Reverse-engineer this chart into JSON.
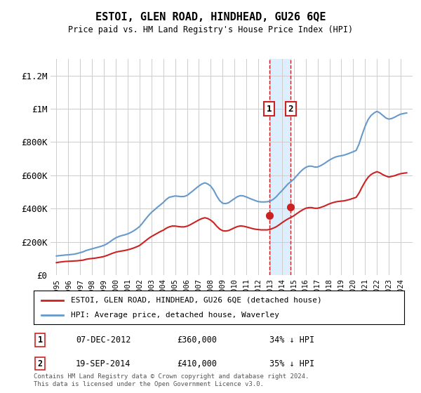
{
  "title": "ESTOI, GLEN ROAD, HINDHEAD, GU26 6QE",
  "subtitle": "Price paid vs. HM Land Registry's House Price Index (HPI)",
  "hpi_color": "#6699cc",
  "price_color": "#cc2222",
  "annotation_bg": "#ddeeff",
  "annotation_border": "#cc2222",
  "vline_color": "#cc2222",
  "grid_color": "#cccccc",
  "ylim": [
    0,
    1300000
  ],
  "yticks": [
    0,
    200000,
    400000,
    600000,
    800000,
    1000000,
    1200000
  ],
  "ytick_labels": [
    "£0",
    "£200K",
    "£400K",
    "£600K",
    "£800K",
    "£1M",
    "£1.2M"
  ],
  "sale1": {
    "date_num": 2012.92,
    "price": 360000,
    "label": "1",
    "date_str": "07-DEC-2012",
    "pct": "34% ↓ HPI"
  },
  "sale2": {
    "date_num": 2014.72,
    "price": 410000,
    "label": "2",
    "date_str": "19-SEP-2014",
    "pct": "35% ↓ HPI"
  },
  "legend_line1": "ESTOI, GLEN ROAD, HINDHEAD, GU26 6QE (detached house)",
  "legend_line2": "HPI: Average price, detached house, Waverley",
  "footnote": "Contains HM Land Registry data © Crown copyright and database right 2024.\nThis data is licensed under the Open Government Licence v3.0.",
  "hpi_x": [
    1995.0,
    1995.25,
    1995.5,
    1995.75,
    1996.0,
    1996.25,
    1996.5,
    1996.75,
    1997.0,
    1997.25,
    1997.5,
    1997.75,
    1998.0,
    1998.25,
    1998.5,
    1998.75,
    1999.0,
    1999.25,
    1999.5,
    1999.75,
    2000.0,
    2000.25,
    2000.5,
    2000.75,
    2001.0,
    2001.25,
    2001.5,
    2001.75,
    2002.0,
    2002.25,
    2002.5,
    2002.75,
    2003.0,
    2003.25,
    2003.5,
    2003.75,
    2004.0,
    2004.25,
    2004.5,
    2004.75,
    2005.0,
    2005.25,
    2005.5,
    2005.75,
    2006.0,
    2006.25,
    2006.5,
    2006.75,
    2007.0,
    2007.25,
    2007.5,
    2007.75,
    2008.0,
    2008.25,
    2008.5,
    2008.75,
    2009.0,
    2009.25,
    2009.5,
    2009.75,
    2010.0,
    2010.25,
    2010.5,
    2010.75,
    2011.0,
    2011.25,
    2011.5,
    2011.75,
    2012.0,
    2012.25,
    2012.5,
    2012.75,
    2013.0,
    2013.25,
    2013.5,
    2013.75,
    2014.0,
    2014.25,
    2014.5,
    2014.75,
    2015.0,
    2015.25,
    2015.5,
    2015.75,
    2016.0,
    2016.25,
    2016.5,
    2016.75,
    2017.0,
    2017.25,
    2017.5,
    2017.75,
    2018.0,
    2018.25,
    2018.5,
    2018.75,
    2019.0,
    2019.25,
    2019.5,
    2019.75,
    2020.0,
    2020.25,
    2020.5,
    2020.75,
    2021.0,
    2021.25,
    2021.5,
    2021.75,
    2022.0,
    2022.25,
    2022.5,
    2022.75,
    2023.0,
    2023.25,
    2023.5,
    2023.75,
    2024.0,
    2024.25,
    2024.5
  ],
  "hpi_y": [
    115000,
    117000,
    119000,
    121000,
    122000,
    124000,
    126000,
    130000,
    135000,
    140000,
    148000,
    153000,
    158000,
    163000,
    168000,
    173000,
    179000,
    188000,
    200000,
    213000,
    224000,
    232000,
    238000,
    242000,
    248000,
    256000,
    266000,
    278000,
    292000,
    313000,
    336000,
    358000,
    377000,
    392000,
    408000,
    422000,
    437000,
    455000,
    468000,
    472000,
    476000,
    474000,
    472000,
    473000,
    479000,
    493000,
    507000,
    522000,
    536000,
    548000,
    555000,
    548000,
    535000,
    510000,
    476000,
    448000,
    432000,
    430000,
    435000,
    448000,
    460000,
    472000,
    478000,
    476000,
    470000,
    462000,
    455000,
    448000,
    442000,
    440000,
    440000,
    441000,
    445000,
    455000,
    470000,
    490000,
    508000,
    528000,
    548000,
    562000,
    578000,
    598000,
    618000,
    635000,
    648000,
    655000,
    655000,
    650000,
    650000,
    658000,
    668000,
    680000,
    692000,
    702000,
    710000,
    715000,
    718000,
    722000,
    728000,
    735000,
    742000,
    750000,
    790000,
    845000,
    895000,
    935000,
    960000,
    975000,
    985000,
    975000,
    960000,
    945000,
    938000,
    942000,
    950000,
    960000,
    968000,
    972000,
    975000
  ],
  "price_x": [
    1995.0,
    1995.25,
    1995.5,
    1995.75,
    1996.0,
    1996.25,
    1996.5,
    1996.75,
    1997.0,
    1997.25,
    1997.5,
    1997.75,
    1998.0,
    1998.25,
    1998.5,
    1998.75,
    1999.0,
    1999.25,
    1999.5,
    1999.75,
    2000.0,
    2000.25,
    2000.5,
    2000.75,
    2001.0,
    2001.25,
    2001.5,
    2001.75,
    2002.0,
    2002.25,
    2002.5,
    2002.75,
    2003.0,
    2003.25,
    2003.5,
    2003.75,
    2004.0,
    2004.25,
    2004.5,
    2004.75,
    2005.0,
    2005.25,
    2005.5,
    2005.75,
    2006.0,
    2006.25,
    2006.5,
    2006.75,
    2007.0,
    2007.25,
    2007.5,
    2007.75,
    2008.0,
    2008.25,
    2008.5,
    2008.75,
    2009.0,
    2009.25,
    2009.5,
    2009.75,
    2010.0,
    2010.25,
    2010.5,
    2010.75,
    2011.0,
    2011.25,
    2011.5,
    2011.75,
    2012.0,
    2012.25,
    2012.5,
    2012.75,
    2013.0,
    2013.25,
    2013.5,
    2013.75,
    2014.0,
    2014.25,
    2014.5,
    2014.75,
    2015.0,
    2015.25,
    2015.5,
    2015.75,
    2016.0,
    2016.25,
    2016.5,
    2016.75,
    2017.0,
    2017.25,
    2017.5,
    2017.75,
    2018.0,
    2018.25,
    2018.5,
    2018.75,
    2019.0,
    2019.25,
    2019.5,
    2019.75,
    2020.0,
    2020.25,
    2020.5,
    2020.75,
    2021.0,
    2021.25,
    2021.5,
    2021.75,
    2022.0,
    2022.25,
    2022.5,
    2022.75,
    2023.0,
    2023.25,
    2023.5,
    2023.75,
    2024.0,
    2024.25,
    2024.5
  ],
  "price_y": [
    75000,
    78000,
    80000,
    82000,
    83000,
    84000,
    85000,
    86000,
    88000,
    90000,
    95000,
    98000,
    100000,
    102000,
    105000,
    108000,
    112000,
    118000,
    125000,
    132000,
    138000,
    142000,
    145000,
    148000,
    152000,
    157000,
    163000,
    170000,
    178000,
    192000,
    206000,
    220000,
    232000,
    242000,
    252000,
    262000,
    270000,
    282000,
    290000,
    295000,
    295000,
    292000,
    290000,
    290000,
    294000,
    302000,
    312000,
    322000,
    332000,
    340000,
    345000,
    340000,
    330000,
    315000,
    294000,
    277000,
    267000,
    265000,
    268000,
    276000,
    285000,
    292000,
    296000,
    294000,
    290000,
    285000,
    280000,
    276000,
    274000,
    272000,
    272000,
    272000,
    275000,
    282000,
    290000,
    302000,
    315000,
    327000,
    338000,
    347000,
    357000,
    370000,
    382000,
    393000,
    402000,
    406000,
    406000,
    402000,
    402000,
    407000,
    413000,
    421000,
    429000,
    435000,
    440000,
    443000,
    445000,
    447000,
    451000,
    456000,
    462000,
    468000,
    495000,
    530000,
    562000,
    588000,
    605000,
    615000,
    622000,
    615000,
    604000,
    596000,
    590000,
    594000,
    598000,
    605000,
    610000,
    613000,
    615000
  ],
  "xmin": 1994.5,
  "xmax": 2025.0
}
